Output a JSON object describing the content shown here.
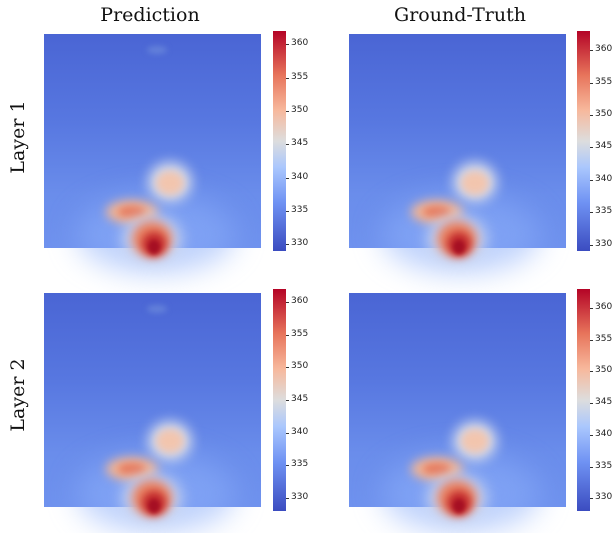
{
  "column_titles": [
    "Prediction",
    "Ground-Truth"
  ],
  "row_labels": [
    "Layer 1",
    "Layer 2"
  ],
  "colormap": {
    "name": "coolwarm",
    "low": "#3b4cc0",
    "mid": "#dddddd",
    "high": "#b40426"
  },
  "chart_data": [
    {
      "type": "heatmap",
      "row": "Layer 1",
      "column": "Prediction",
      "colorbar_range": [
        329,
        362
      ],
      "colorbar_ticks": [
        "330",
        "335",
        "340",
        "345",
        "350",
        "355",
        "360"
      ]
    },
    {
      "type": "heatmap",
      "row": "Layer 1",
      "column": "Ground-Truth",
      "colorbar_range": [
        329,
        363
      ],
      "colorbar_ticks": [
        "330",
        "335",
        "340",
        "345",
        "350",
        "355",
        "360"
      ]
    },
    {
      "type": "heatmap",
      "row": "Layer 2",
      "column": "Prediction",
      "colorbar_range": [
        328,
        362
      ],
      "colorbar_ticks": [
        "330",
        "335",
        "340",
        "345",
        "350",
        "355",
        "360"
      ]
    },
    {
      "type": "heatmap",
      "row": "Layer 2",
      "column": "Ground-Truth",
      "colorbar_range": [
        328,
        363
      ],
      "colorbar_ticks": [
        "330",
        "335",
        "340",
        "345",
        "350",
        "355",
        "360"
      ]
    }
  ]
}
